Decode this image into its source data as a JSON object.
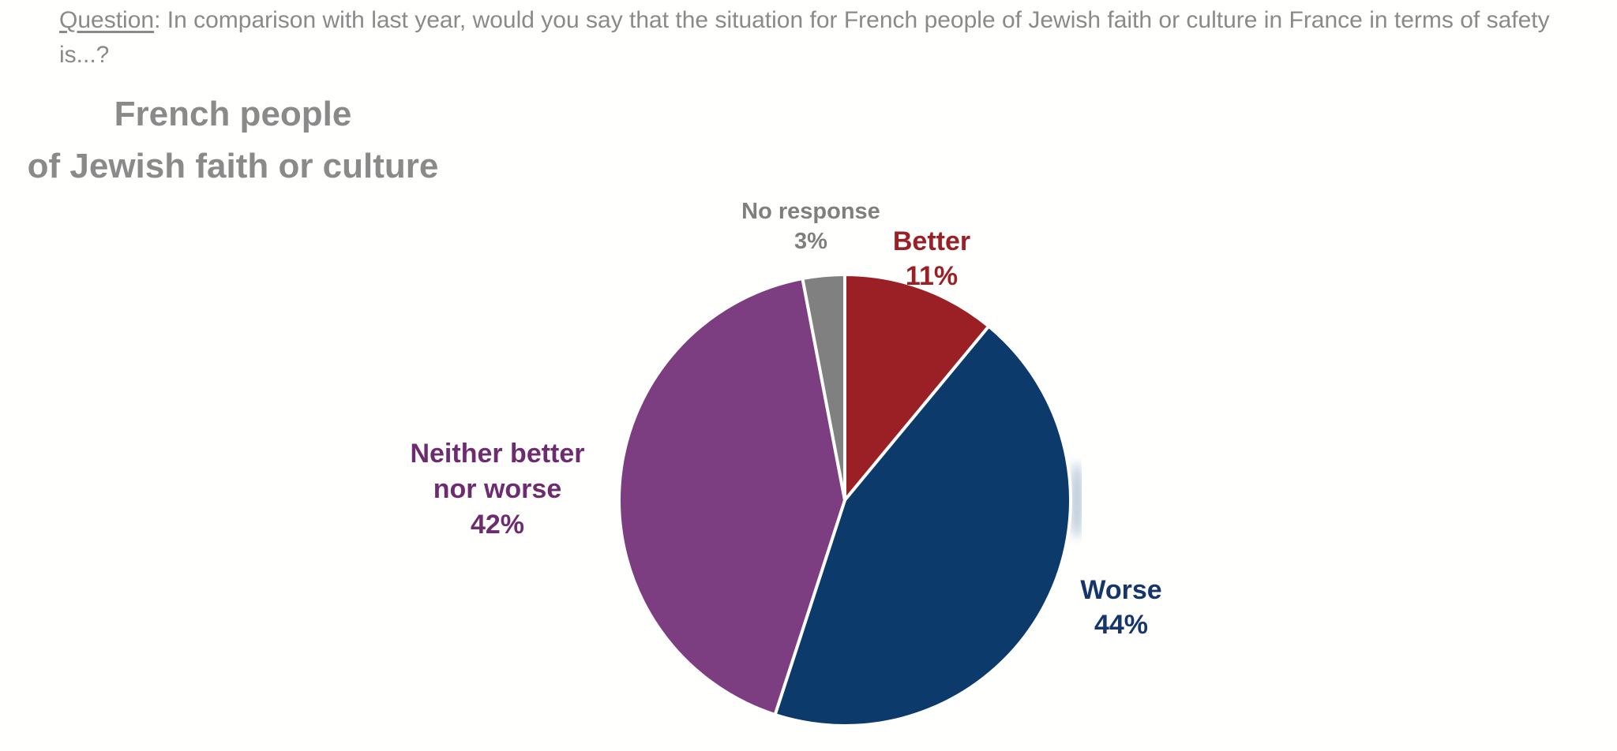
{
  "question": {
    "label": "Question",
    "separator": ":  ",
    "text": "In comparison with last year, would you say that the situation for French people of Jewish faith or culture in France in terms of safety is...?"
  },
  "title": {
    "line1": "French people",
    "line2": "of Jewish faith or culture"
  },
  "chart_data": {
    "type": "pie",
    "title": "French people of Jewish faith or culture",
    "question": "In comparison with last year, would you say that the situation for French people of Jewish faith or culture in France in terms of safety is...?",
    "start_angle_deg": -90,
    "direction": "clockwise",
    "unit": "%",
    "slices": [
      {
        "label": "Better",
        "value": 11,
        "display": "11%",
        "color": "#9a2026"
      },
      {
        "label": "Worse",
        "value": 44,
        "display": "44%",
        "color": "#0b3a6b"
      },
      {
        "label": "Neither better nor worse",
        "value": 42,
        "display": "42%",
        "color": "#7c3e80"
      },
      {
        "label": "No response",
        "value": 3,
        "display": "3%",
        "color": "#808080"
      }
    ],
    "legend_position": "labels-around-pie",
    "separator_color": "#ffffff"
  },
  "callouts": {
    "no_response": {
      "color": "#7f7f7f",
      "lines": [
        "No response",
        "3%"
      ]
    },
    "better": {
      "color": "#9a2026",
      "lines": [
        "Better",
        "11%"
      ]
    },
    "neither": {
      "color": "#6e2c70",
      "lines": [
        "Neither better",
        "nor worse",
        "42%"
      ]
    },
    "worse": {
      "color": "#16356b",
      "lines": [
        "Worse",
        "44%"
      ]
    }
  }
}
